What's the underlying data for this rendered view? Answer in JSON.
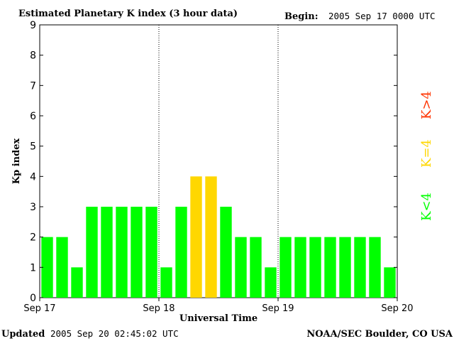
{
  "header": {
    "title": "Estimated Planetary K index (3 hour data)",
    "begin_label": "Begin:",
    "begin_value": "2005 Sep 17 0000 UTC"
  },
  "footer": {
    "updated_label": "Updated",
    "updated_value": "2005 Sep 20 02:45:02 UTC",
    "source": "NOAA/SEC Boulder, CO USA"
  },
  "legend": {
    "green": "K<4",
    "yellow": "K=4",
    "red": "K>4"
  },
  "colors": {
    "green": "#00ff00",
    "yellow": "#ffd700",
    "red": "#ff3300"
  },
  "chart_data": {
    "type": "bar",
    "title": "Estimated Planetary K index (3 hour data)",
    "xlabel": "Universal Time",
    "ylabel": "Kp index",
    "ylim": [
      0,
      9
    ],
    "yticks": [
      "0",
      "1",
      "2",
      "3",
      "4",
      "5",
      "6",
      "7",
      "8",
      "9"
    ],
    "xticks": [
      "Sep 17",
      "Sep 18",
      "Sep 19",
      "Sep 20"
    ],
    "values": [
      2,
      2,
      1,
      3,
      3,
      3,
      3,
      3,
      1,
      3,
      4,
      4,
      3,
      2,
      2,
      1,
      2,
      2,
      2,
      2,
      2,
      2,
      2,
      1
    ]
  }
}
